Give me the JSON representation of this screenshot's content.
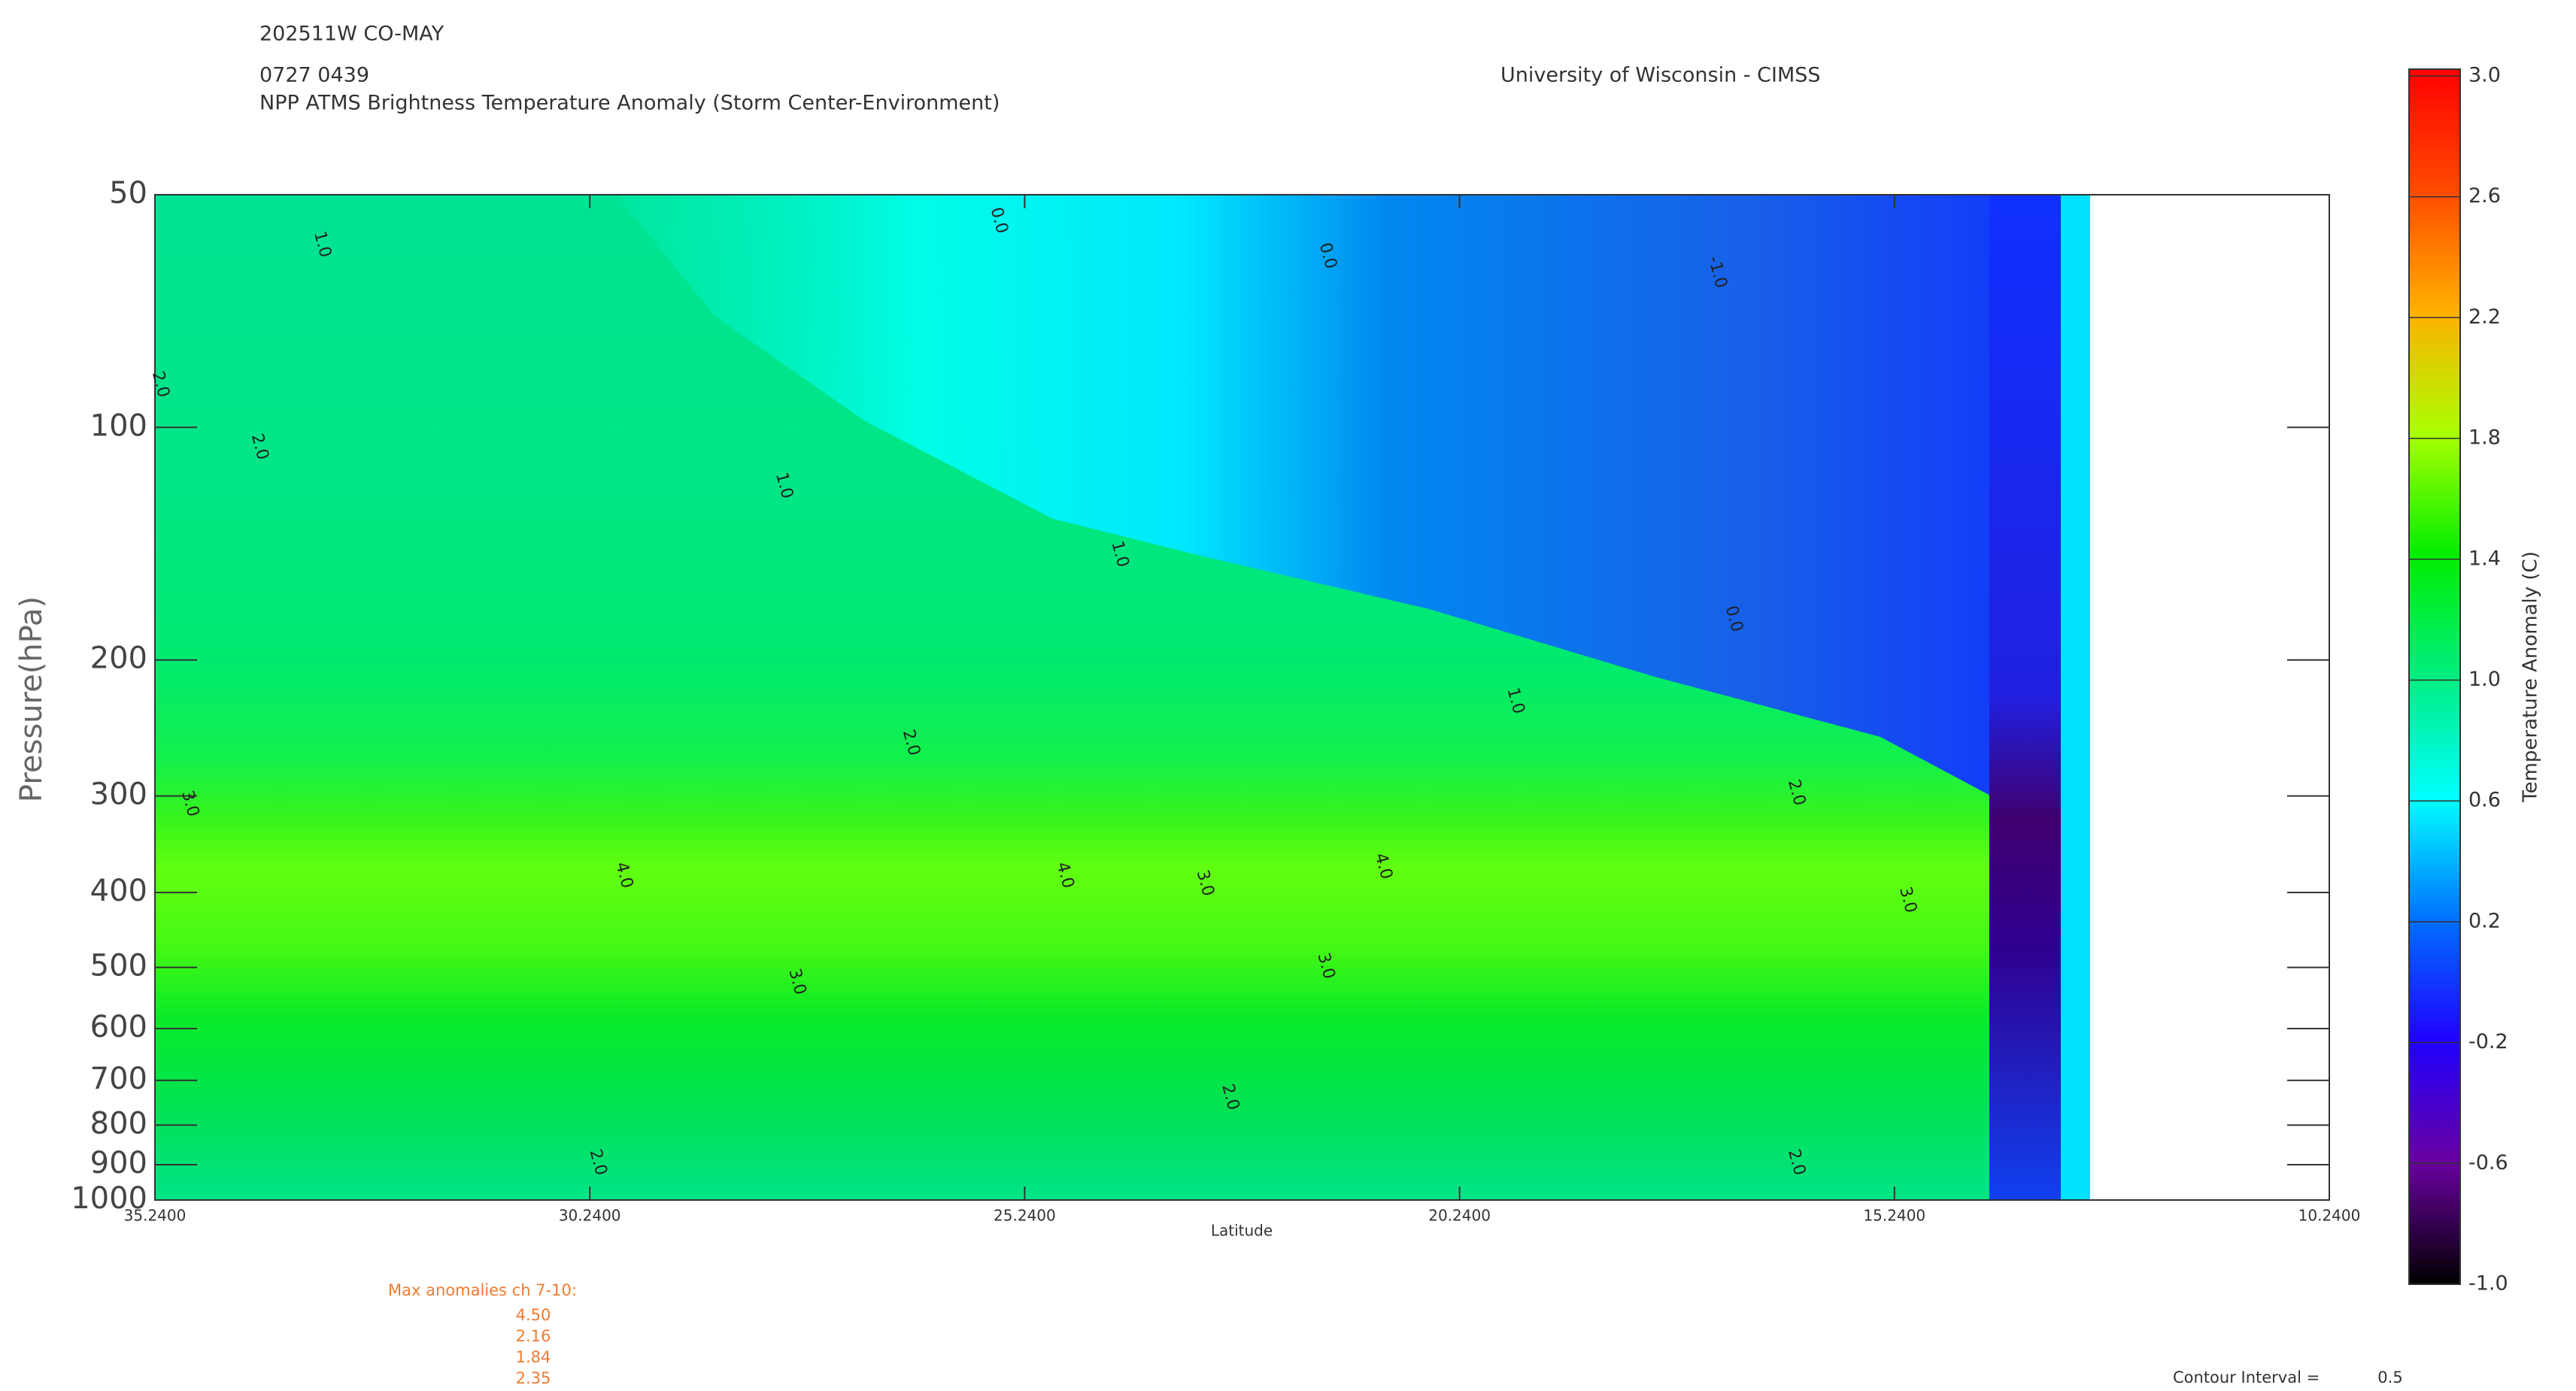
{
  "chart_data": {
    "type": "contour",
    "header": [
      "202511W CO-MAY",
      "0727 0439",
      "NPP ATMS Brightness Temperature Anomaly (Storm Center-Environment)"
    ],
    "credit": "University of Wisconsin - CIMSS",
    "x_label": "Latitude",
    "y_label": "Pressure(hPa)",
    "y_log": true,
    "xlim": [
      35.24,
      10.24
    ],
    "xticks": [
      {
        "value": 35.24,
        "label": "35.2400"
      },
      {
        "value": 30.24,
        "label": "30.2400"
      },
      {
        "value": 25.24,
        "label": "25.2400"
      },
      {
        "value": 20.24,
        "label": "20.2400"
      },
      {
        "value": 15.24,
        "label": "15.2400"
      },
      {
        "value": 10.24,
        "label": "10.2400"
      }
    ],
    "ylim": [
      1000,
      50
    ],
    "yticks": [
      50,
      100,
      200,
      300,
      400,
      500,
      600,
      700,
      800,
      900,
      1000
    ],
    "colorbar": {
      "label": "Temperature Anomaly (C)",
      "lim": [
        -1.0,
        3.0
      ],
      "ticks": [
        {
          "value": 3,
          "label": "3.0"
        },
        2.6,
        2.2,
        1.8,
        1.4,
        {
          "value": 1,
          "label": "1.0"
        },
        0.6,
        0.2,
        -0.2,
        -0.6,
        {
          "value": -1,
          "label": "-1.0"
        }
      ]
    },
    "contour_labels": [
      {
        "label": "1.0",
        "x": 33.32,
        "y": 58
      },
      {
        "label": "2.0",
        "x": 35.18,
        "y": 88
      },
      {
        "label": "2.0",
        "x": 34.04,
        "y": 106
      },
      {
        "label": "1.0",
        "x": 28.01,
        "y": 119
      },
      {
        "label": "0.0",
        "x": 25.54,
        "y": 54
      },
      {
        "label": "0.0",
        "x": 21.76,
        "y": 60
      },
      {
        "label": "1.0",
        "x": 24.15,
        "y": 146
      },
      {
        "label": "0.0",
        "x": 17.09,
        "y": 177
      },
      {
        "label": "-1.0",
        "x": 17.28,
        "y": 63
      },
      {
        "label": "1.0",
        "x": 19.6,
        "y": 226
      },
      {
        "label": "2.0",
        "x": 26.55,
        "y": 256
      },
      {
        "label": "2.0",
        "x": 16.37,
        "y": 297
      },
      {
        "label": "3.0",
        "x": 34.84,
        "y": 307
      },
      {
        "label": "4.0",
        "x": 29.85,
        "y": 380
      },
      {
        "label": "4.0",
        "x": 24.78,
        "y": 380
      },
      {
        "label": "4.0",
        "x": 21.12,
        "y": 370
      },
      {
        "label": "3.0",
        "x": 23.17,
        "y": 389
      },
      {
        "label": "3.0",
        "x": 21.78,
        "y": 498
      },
      {
        "label": "3.0",
        "x": 27.86,
        "y": 522
      },
      {
        "label": "2.0",
        "x": 22.88,
        "y": 736
      },
      {
        "label": "2.0",
        "x": 30.15,
        "y": 894
      },
      {
        "label": "2.0",
        "x": 16.37,
        "y": 894
      },
      {
        "label": "3.0",
        "x": 15.09,
        "y": 409
      }
    ],
    "max_anomalies": {
      "title": "Max anomalies ch 7-10:",
      "values": [
        4.5,
        2.16,
        1.84,
        2.35
      ],
      "value_labels": [
        "4.50",
        "2.16",
        "1.84",
        "2.35"
      ]
    },
    "contour_interval": {
      "label": "Contour Interval =",
      "value": 0.5
    }
  }
}
